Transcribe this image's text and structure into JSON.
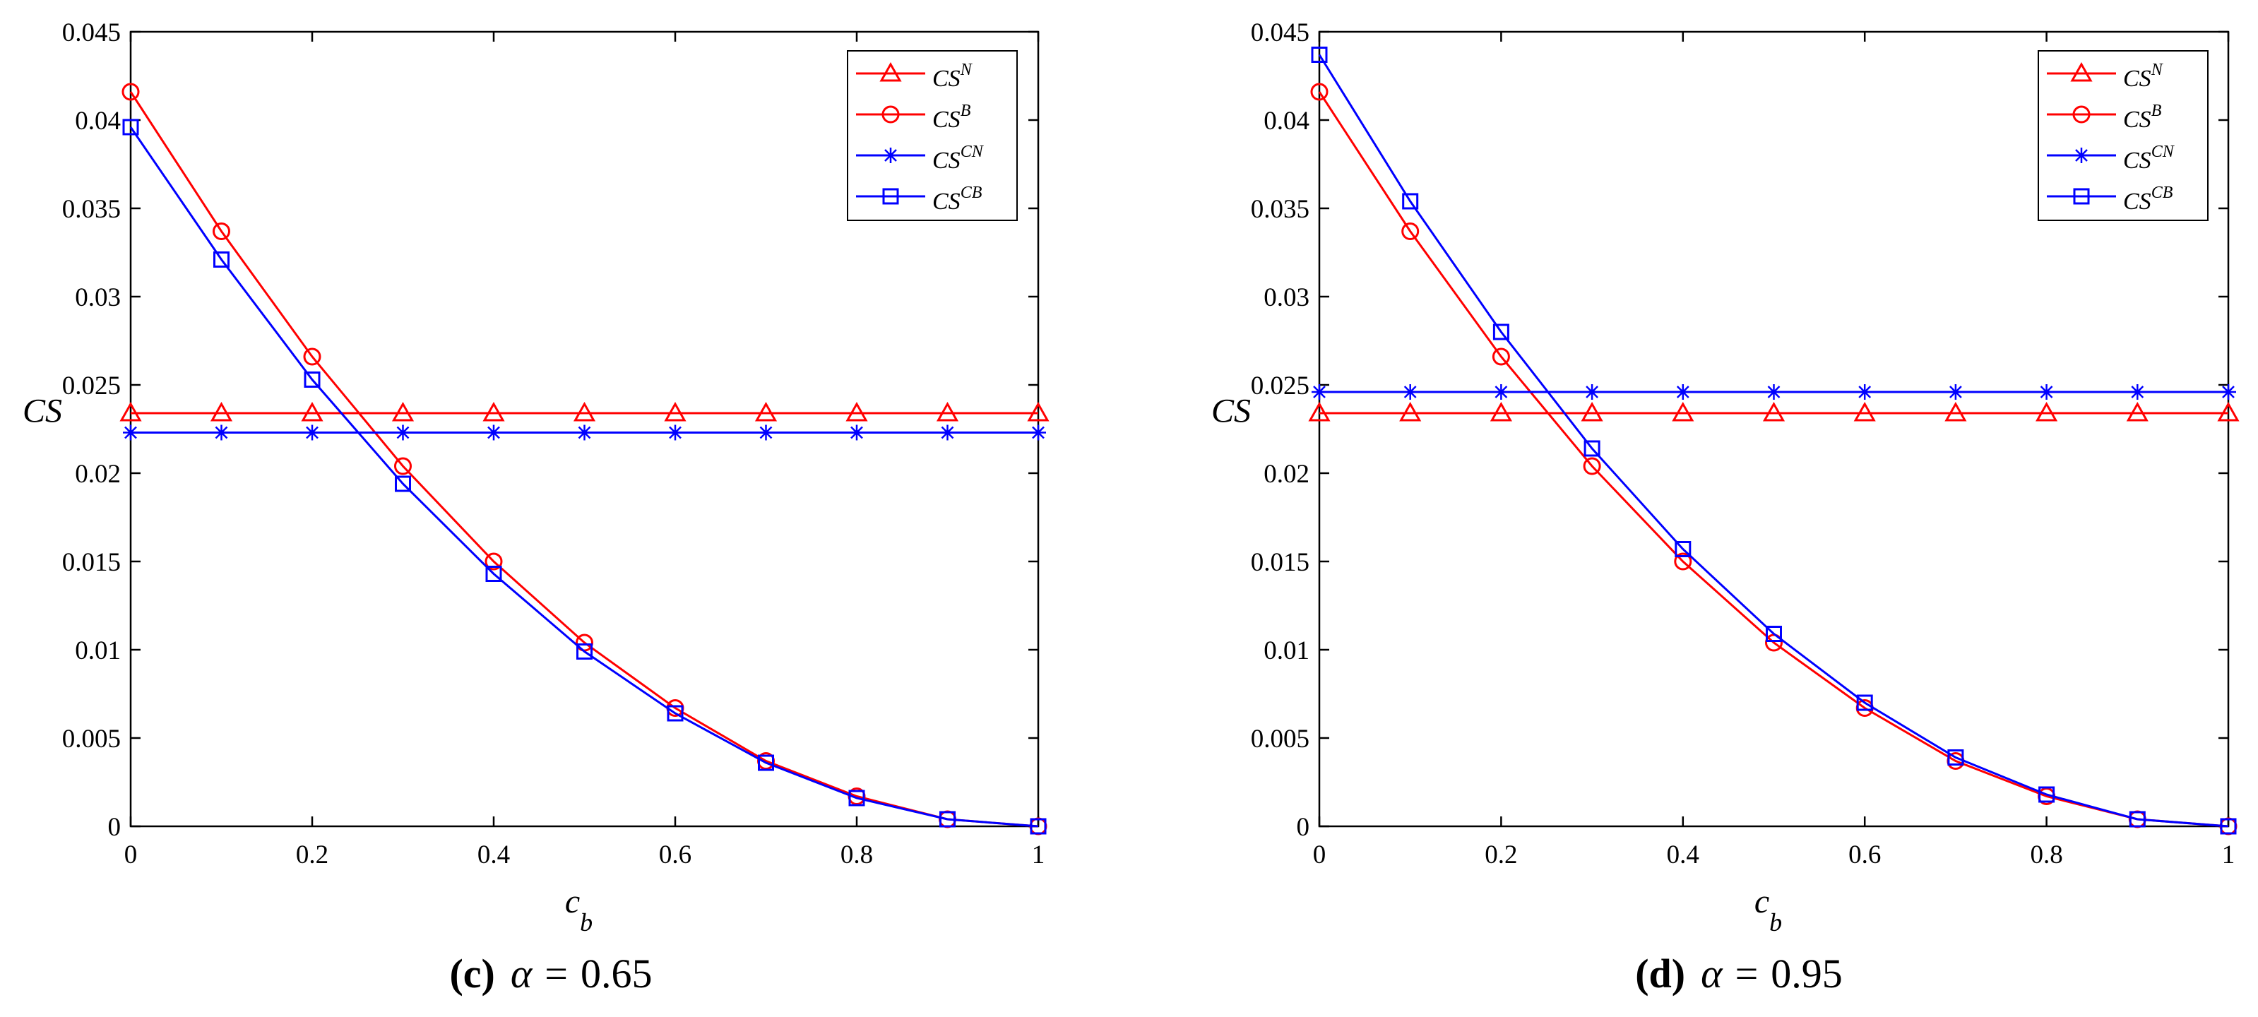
{
  "chart_data": [
    {
      "type": "line",
      "caption": {
        "panel": "(c)",
        "symbol": "α",
        "equals": "=",
        "value": "0.65"
      },
      "xlabel": "c",
      "xlabel_sub": "b",
      "ylabel": "CS",
      "xlim": [
        0,
        1
      ],
      "ylim": [
        0,
        0.045
      ],
      "x_ticks": [
        "0",
        "0.2",
        "0.4",
        "0.6",
        "0.8",
        "1"
      ],
      "y_ticks": [
        "0",
        "0.005",
        "0.01",
        "0.015",
        "0.02",
        "0.025",
        "0.03",
        "0.035",
        "0.04",
        "0.045"
      ],
      "legend_position": "top-right",
      "x": [
        0,
        0.1,
        0.2,
        0.3,
        0.4,
        0.5,
        0.6,
        0.7,
        0.8,
        0.9,
        1.0
      ],
      "series": [
        {
          "name": "CS^N",
          "base": "CS",
          "sup": "N",
          "color": "#ff0000",
          "marker": "triangle",
          "values": [
            0.0234,
            0.0234,
            0.0234,
            0.0234,
            0.0234,
            0.0234,
            0.0234,
            0.0234,
            0.0234,
            0.0234,
            0.0234
          ]
        },
        {
          "name": "CS^B",
          "base": "CS",
          "sup": "B",
          "color": "#ff0000",
          "marker": "circle",
          "values": [
            0.0416,
            0.0337,
            0.0266,
            0.0204,
            0.015,
            0.0104,
            0.0067,
            0.0037,
            0.0017,
            0.0004,
            0.0
          ]
        },
        {
          "name": "CS^CN",
          "base": "CS",
          "sup": "CN",
          "color": "#0000ff",
          "marker": "star",
          "values": [
            0.0223,
            0.0223,
            0.0223,
            0.0223,
            0.0223,
            0.0223,
            0.0223,
            0.0223,
            0.0223,
            0.0223,
            0.0223
          ]
        },
        {
          "name": "CS^CB",
          "base": "CS",
          "sup": "CB",
          "color": "#0000ff",
          "marker": "square",
          "values": [
            0.0396,
            0.0321,
            0.0253,
            0.0194,
            0.0143,
            0.0099,
            0.0064,
            0.0036,
            0.0016,
            0.0004,
            0.0
          ]
        }
      ]
    },
    {
      "type": "line",
      "caption": {
        "panel": "(d)",
        "symbol": "α",
        "equals": "=",
        "value": "0.95"
      },
      "xlabel": "c",
      "xlabel_sub": "b",
      "ylabel": "CS",
      "xlim": [
        0,
        1
      ],
      "ylim": [
        0,
        0.045
      ],
      "x_ticks": [
        "0",
        "0.2",
        "0.4",
        "0.6",
        "0.8",
        "1"
      ],
      "y_ticks": [
        "0",
        "0.005",
        "0.01",
        "0.015",
        "0.02",
        "0.025",
        "0.03",
        "0.035",
        "0.04",
        "0.045"
      ],
      "legend_position": "top-right",
      "x": [
        0,
        0.1,
        0.2,
        0.3,
        0.4,
        0.5,
        0.6,
        0.7,
        0.8,
        0.9,
        1.0
      ],
      "series": [
        {
          "name": "CS^N",
          "base": "CS",
          "sup": "N",
          "color": "#ff0000",
          "marker": "triangle",
          "values": [
            0.0234,
            0.0234,
            0.0234,
            0.0234,
            0.0234,
            0.0234,
            0.0234,
            0.0234,
            0.0234,
            0.0234,
            0.0234
          ]
        },
        {
          "name": "CS^B",
          "base": "CS",
          "sup": "B",
          "color": "#ff0000",
          "marker": "circle",
          "values": [
            0.0416,
            0.0337,
            0.0266,
            0.0204,
            0.015,
            0.0104,
            0.0067,
            0.0037,
            0.0017,
            0.0004,
            0.0
          ]
        },
        {
          "name": "CS^CN",
          "base": "CS",
          "sup": "CN",
          "color": "#0000ff",
          "marker": "star",
          "values": [
            0.0246,
            0.0246,
            0.0246,
            0.0246,
            0.0246,
            0.0246,
            0.0246,
            0.0246,
            0.0246,
            0.0246,
            0.0246
          ]
        },
        {
          "name": "CS^CB",
          "base": "CS",
          "sup": "CB",
          "color": "#0000ff",
          "marker": "square",
          "values": [
            0.0437,
            0.0354,
            0.028,
            0.0214,
            0.0157,
            0.0109,
            0.007,
            0.0039,
            0.0018,
            0.0004,
            0.0
          ]
        }
      ]
    }
  ]
}
